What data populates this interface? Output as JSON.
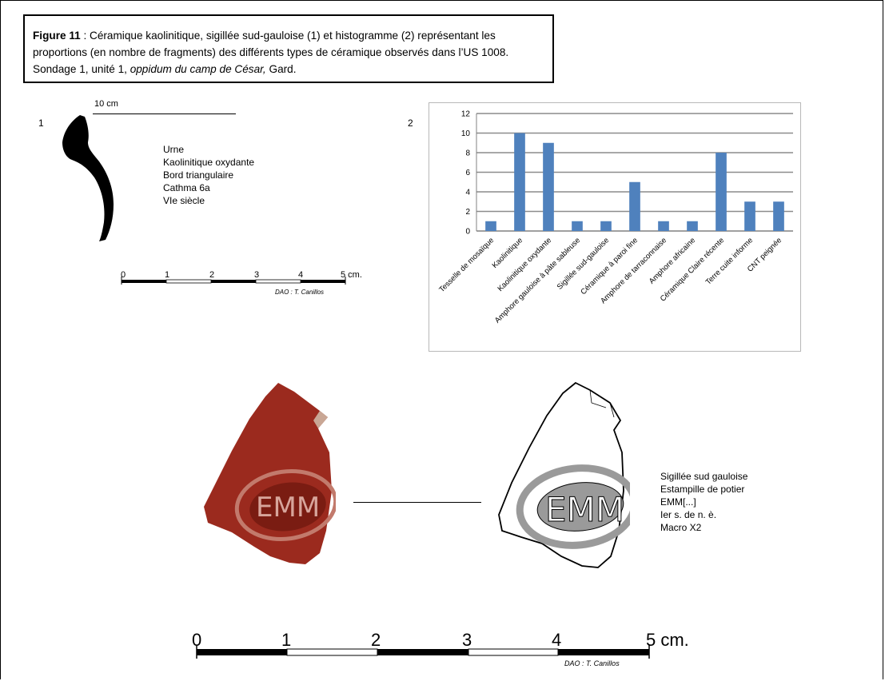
{
  "caption": {
    "figure_label": "Figure 11",
    "line1_rest": " : Céramique kaolinitique, sigillée sud-gauloise (1) et histogramme (2) représentant les",
    "line2": "proportions (en nombre de fragments) des différents types de céramique observés dans l’US 1008.",
    "line3_a": "Sondage 1, unité 1, ",
    "line3_italic": "oppidum du camp de César,",
    "line3_b": " Gard."
  },
  "panel1": {
    "number": "1",
    "scale_label": "10 cm",
    "description": [
      "Urne",
      "Kaolinitique oxydante",
      "Bord triangulaire",
      "Cathma 6a",
      "VIe siècle"
    ],
    "ruler": {
      "ticks": [
        "0",
        "1",
        "2",
        "3",
        "4",
        "5 cm."
      ],
      "credit": "DAO : T. Canillos"
    }
  },
  "panel2": {
    "number": "2"
  },
  "chart_data": {
    "type": "bar",
    "categories": [
      "Tesselle de mosaïque",
      "Kaolinitique",
      "Kaolinitique oxydante",
      "Amphore gauloise à pâte sableuse",
      "Sigillée sud-gauloise",
      "Céramique à paroi fine",
      "Amphore de tarraconnaise",
      "Amphore africaine",
      "Céramique Claire récente",
      "Terre cuite informe",
      "CNT peignée"
    ],
    "values": [
      1,
      10,
      9,
      1,
      1,
      5,
      1,
      1,
      8,
      3,
      3
    ],
    "yticks": [
      "0",
      "2",
      "4",
      "6",
      "8",
      "10",
      "12"
    ],
    "ylim": [
      0,
      12
    ],
    "grid": true,
    "bar_color": "#4f81bd"
  },
  "sherd": {
    "stamp_text": "EMM",
    "description": [
      "Sigillée sud gauloise",
      "Estampille de potier",
      "EMM[...]",
      "Ier s. de n. è.",
      "Macro X2"
    ],
    "colors": {
      "clay": "#9b2a1e",
      "stamp_fill": "#9a9a9a"
    }
  },
  "bottom_ruler": {
    "ticks": [
      "0",
      "1",
      "2",
      "3",
      "4",
      "5 cm."
    ],
    "credit": "DAO : T. Canillos"
  }
}
